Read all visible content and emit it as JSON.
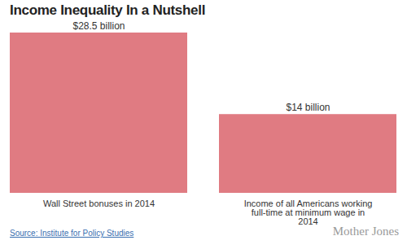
{
  "chart_data": {
    "type": "bar",
    "title": "Income Inequality In a Nutshell",
    "categories": [
      "Wall Street bonuses in 2014",
      "Income of all Americans working full-time at minimum wage in 2014"
    ],
    "values": [
      28.5,
      14
    ],
    "value_labels": [
      "$28.5 billion",
      "$14 billion"
    ],
    "color": "#e07b82",
    "data_labels": true,
    "tick_labels": "x",
    "source": "Source: Institute for Policy Studies",
    "credit": "Mother Jones"
  }
}
